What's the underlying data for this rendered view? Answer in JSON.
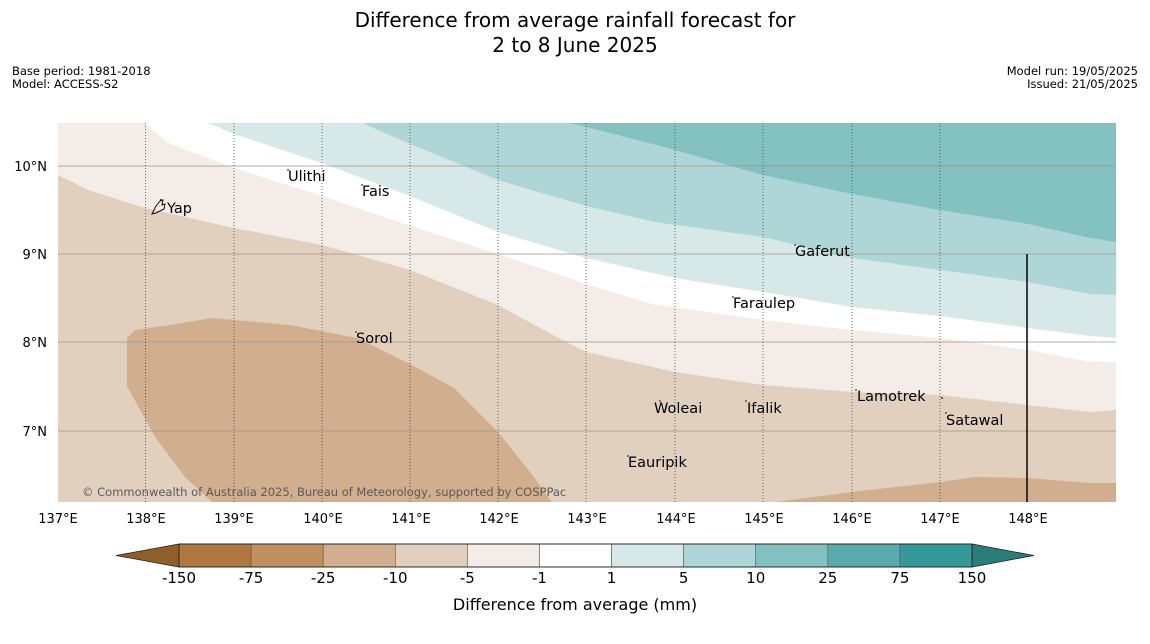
{
  "title": {
    "line1": "Difference from average rainfall forecast for",
    "line2": "2 to 8 June 2025"
  },
  "meta_left": {
    "base_period": "Base period: 1981-2018",
    "model": "Model: ACCESS-S2"
  },
  "meta_right": {
    "model_run": "Model run: 19/05/2025",
    "issued": "Issued: 21/05/2025"
  },
  "map": {
    "lat_ticks": [
      "10°N",
      "9°N",
      "8°N",
      "7°N"
    ],
    "lon_ticks": [
      "137°E",
      "138°E",
      "139°E",
      "140°E",
      "141°E",
      "142°E",
      "143°E",
      "144°E",
      "145°E",
      "146°E",
      "147°E",
      "148°E"
    ],
    "places": [
      {
        "name": "Yap"
      },
      {
        "name": "Ulithi"
      },
      {
        "name": "Fais"
      },
      {
        "name": "Gaferut"
      },
      {
        "name": "Faraulep"
      },
      {
        "name": "Sorol"
      },
      {
        "name": "Lamotrek"
      },
      {
        "name": "Woleai"
      },
      {
        "name": "Ifalik"
      },
      {
        "name": "Satawal"
      },
      {
        "name": "Eauripik"
      }
    ],
    "copyright": "© Commonwealth of Australia 2025, Bureau of Meteorology, supported by COSPPac"
  },
  "colorbar": {
    "title": "Difference from average (mm)",
    "labels": [
      "-150",
      "-75",
      "-25",
      "-10",
      "-5",
      "-1",
      "1",
      "5",
      "10",
      "25",
      "75",
      "150"
    ],
    "colors": [
      "#b07840",
      "#c0915e",
      "#d1af8e",
      "#e2d0bf",
      "#f4ece6",
      "#ffffff",
      "#d6e9e8",
      "#aed6d6",
      "#84c2c2",
      "#5aabab",
      "#349a99"
    ],
    "extend_low_color": "#8f5e29",
    "extend_high_color": "#2b7d7c"
  }
}
